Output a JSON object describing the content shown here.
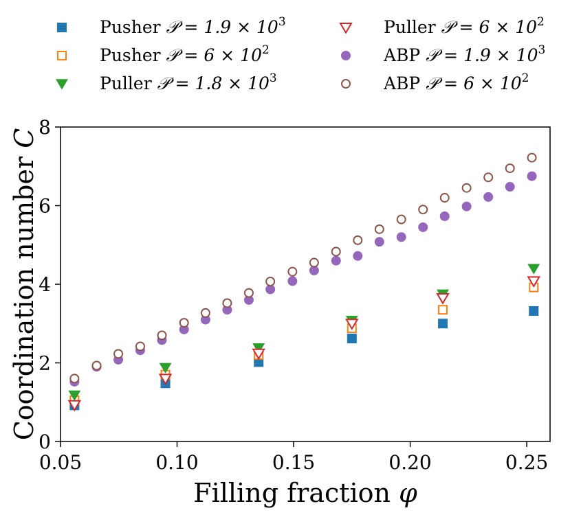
{
  "chart_data": {
    "type": "scatter",
    "xlabel": "Filling fraction",
    "xlabel_symbol": "φ",
    "ylabel": "Coordination number",
    "ylabel_symbol": "C",
    "xlim": [
      0.05,
      0.26
    ],
    "ylim": [
      0,
      8
    ],
    "xticks": [
      0.05,
      0.1,
      0.15,
      0.2,
      0.25
    ],
    "xtick_labels": [
      "0.05",
      "0.10",
      "0.15",
      "0.20",
      "0.25"
    ],
    "yticks": [
      0,
      2,
      4,
      6,
      8
    ],
    "ytick_labels": [
      "0",
      "2",
      "4",
      "6",
      "8"
    ],
    "grid": false,
    "legend_position": "top",
    "series": [
      {
        "name": "Pusher",
        "param_text": "𝒫 = 1.9 × 10",
        "param_exp": "3",
        "marker": "square-filled",
        "color": "#1f77b4",
        "x": [
          0.056,
          0.095,
          0.135,
          0.175,
          0.214,
          0.253
        ],
        "y": [
          0.92,
          1.48,
          2.02,
          2.62,
          3.0,
          3.32
        ]
      },
      {
        "name": "Pusher",
        "param_text": "𝒫 = 6 × 10",
        "param_exp": "2",
        "marker": "square-open",
        "color": "#ff7f0e",
        "x": [
          0.056,
          0.095,
          0.135,
          0.175,
          0.214,
          0.253
        ],
        "y": [
          1.05,
          1.7,
          2.2,
          2.88,
          3.35,
          3.92
        ]
      },
      {
        "name": "Puller",
        "param_text": "𝒫 = 1.8 × 10",
        "param_exp": "3",
        "marker": "triangle-down-filled",
        "color": "#2ca02c",
        "x": [
          0.056,
          0.095,
          0.135,
          0.175,
          0.214,
          0.253
        ],
        "y": [
          1.18,
          1.88,
          2.38,
          3.08,
          3.75,
          4.4
        ]
      },
      {
        "name": "Puller",
        "param_text": "𝒫 = 6 × 10",
        "param_exp": "2",
        "marker": "triangle-down-open",
        "color": "#d62728",
        "x": [
          0.056,
          0.095,
          0.135,
          0.175,
          0.214,
          0.253
        ],
        "y": [
          0.93,
          1.6,
          2.24,
          3.0,
          3.65,
          4.08
        ]
      },
      {
        "name": "ABP",
        "param_text": "𝒫 = 1.9 × 10",
        "param_exp": "3",
        "marker": "circle-filled",
        "color": "#9467bd",
        "x": [
          0.056,
          0.0655,
          0.0748,
          0.0842,
          0.0935,
          0.103,
          0.1122,
          0.1215,
          0.1308,
          0.14,
          0.1495,
          0.1588,
          0.1682,
          0.1775,
          0.1868,
          0.1962,
          0.2055,
          0.2148,
          0.2242,
          0.2335,
          0.2428,
          0.2522
        ],
        "y": [
          1.52,
          1.9,
          2.08,
          2.32,
          2.58,
          2.85,
          3.1,
          3.35,
          3.6,
          3.87,
          4.08,
          4.35,
          4.6,
          4.72,
          5.08,
          5.2,
          5.45,
          5.73,
          5.98,
          6.22,
          6.48,
          6.75
        ]
      },
      {
        "name": "ABP",
        "param_text": "𝒫 = 6 × 10",
        "param_exp": "2",
        "marker": "circle-open",
        "color": "#8c564b",
        "x": [
          0.056,
          0.0655,
          0.0748,
          0.0842,
          0.0935,
          0.103,
          0.1122,
          0.1215,
          0.1308,
          0.14,
          0.1495,
          0.1588,
          0.1682,
          0.1775,
          0.1868,
          0.1962,
          0.2055,
          0.2148,
          0.2242,
          0.2335,
          0.2428,
          0.2522
        ],
        "y": [
          1.6,
          1.93,
          2.23,
          2.42,
          2.7,
          3.02,
          3.27,
          3.52,
          3.78,
          4.07,
          4.32,
          4.55,
          4.83,
          5.12,
          5.4,
          5.65,
          5.9,
          6.2,
          6.45,
          6.72,
          6.95,
          7.22
        ]
      }
    ]
  }
}
